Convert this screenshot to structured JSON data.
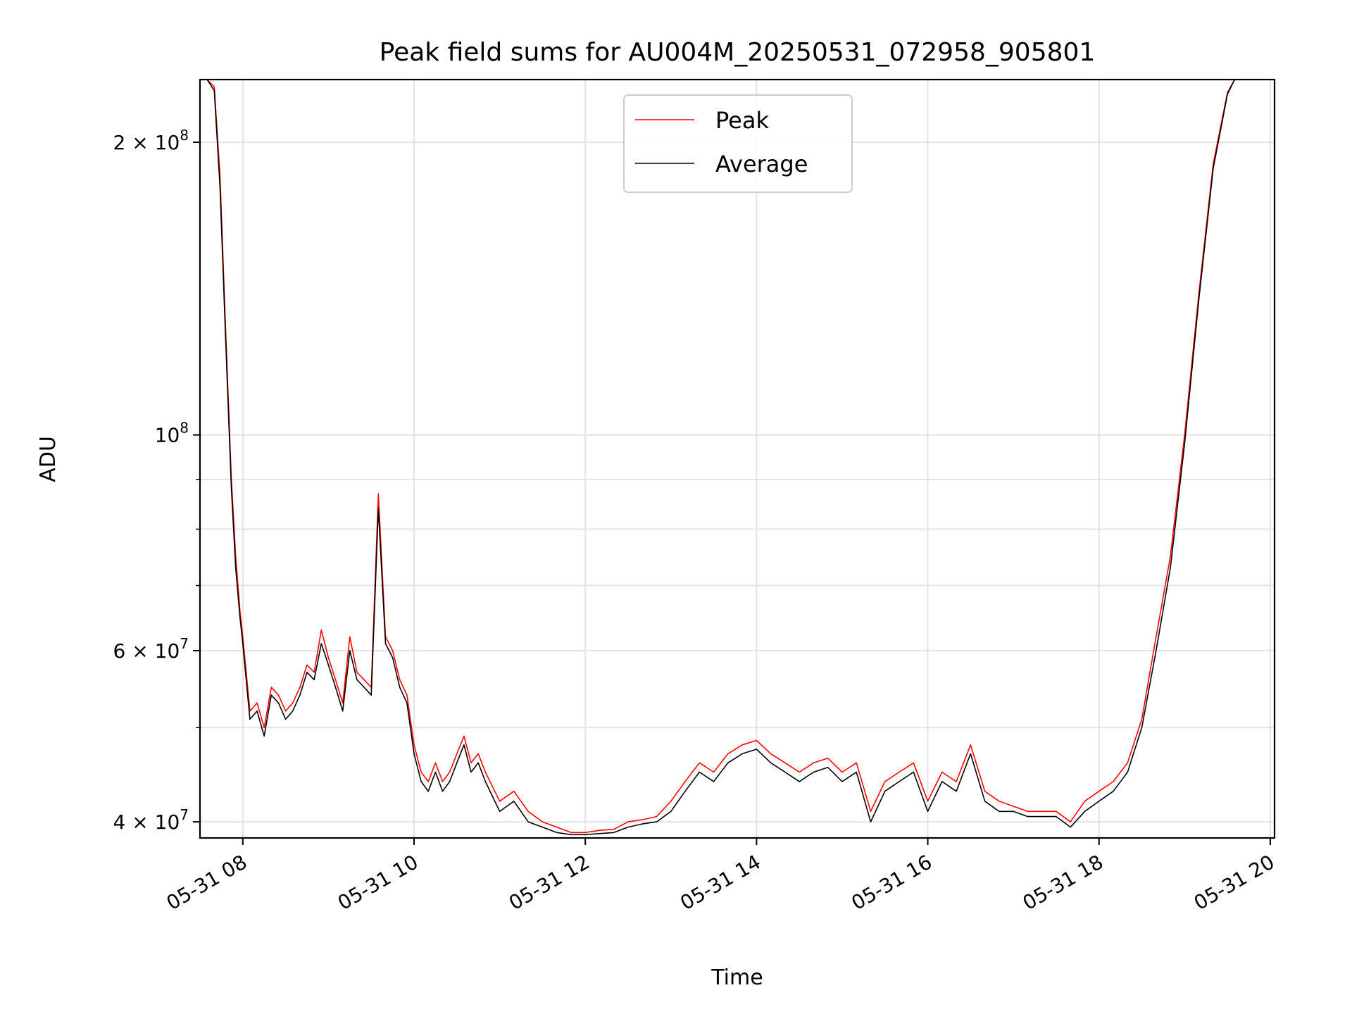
{
  "chart_data": {
    "type": "line",
    "title": "Peak field sums for AU004M_20250531_072958_905801",
    "xlabel": "Time",
    "ylabel": "ADU",
    "yscale": "log",
    "ylim": [
      38500000,
      232000000
    ],
    "xlim": [
      "2025-05-31 07:30",
      "2025-05-31 20:03"
    ],
    "grid": true,
    "legend_position": "upper center",
    "x_tick_labels": [
      "05-31 08",
      "05-31 10",
      "05-31 12",
      "05-31 14",
      "05-31 16",
      "05-31 18",
      "05-31 20"
    ],
    "x_ticks": [
      "2025-05-31 08:00",
      "2025-05-31 10:00",
      "2025-05-31 12:00",
      "2025-05-31 14:00",
      "2025-05-31 16:00",
      "2025-05-31 18:00",
      "2025-05-31 20:00"
    ],
    "y_tick_labels": [
      {
        "value": 40000000,
        "base": "4 × 10",
        "exp": "7"
      },
      {
        "value": 60000000,
        "base": "6 × 10",
        "exp": "7"
      },
      {
        "value": 100000000,
        "base": "10",
        "exp": "8"
      },
      {
        "value": 200000000,
        "base": "2 × 10",
        "exp": "8"
      }
    ],
    "y_minor_ticks": [
      50000000,
      70000000,
      80000000,
      90000000
    ],
    "series": [
      {
        "name": "Peak",
        "color": "#ff0000",
        "x": [
          "07:30",
          "07:35",
          "07:40",
          "07:44",
          "07:48",
          "07:52",
          "07:55",
          "07:58",
          "08:00",
          "08:05",
          "08:10",
          "08:15",
          "08:20",
          "08:25",
          "08:30",
          "08:35",
          "08:40",
          "08:45",
          "08:50",
          "08:55",
          "09:00",
          "09:05",
          "09:10",
          "09:15",
          "09:20",
          "09:25",
          "09:30",
          "09:35",
          "09:40",
          "09:45",
          "09:50",
          "09:55",
          "10:00",
          "10:05",
          "10:10",
          "10:15",
          "10:20",
          "10:25",
          "10:30",
          "10:35",
          "10:40",
          "10:45",
          "10:50",
          "11:00",
          "11:10",
          "11:20",
          "11:30",
          "11:40",
          "11:50",
          "12:00",
          "12:10",
          "12:20",
          "12:30",
          "12:40",
          "12:50",
          "13:00",
          "13:10",
          "13:20",
          "13:30",
          "13:40",
          "13:50",
          "14:00",
          "14:10",
          "14:20",
          "14:30",
          "14:40",
          "14:50",
          "15:00",
          "15:10",
          "15:20",
          "15:30",
          "15:40",
          "15:50",
          "16:00",
          "16:10",
          "16:20",
          "16:30",
          "16:40",
          "16:50",
          "17:00",
          "17:10",
          "17:20",
          "17:30",
          "17:40",
          "17:50",
          "18:00",
          "18:10",
          "18:20",
          "18:30",
          "18:40",
          "18:50",
          "19:00",
          "19:10",
          "19:20",
          "19:30",
          "19:35",
          "19:40",
          "19:45",
          "19:50",
          "19:55",
          "20:00",
          "20:03"
        ],
        "y": [
          232000000,
          232000000,
          228000000,
          185000000,
          128000000,
          90000000,
          75000000,
          66000000,
          62000000,
          52000000,
          53000000,
          50000000,
          55000000,
          54000000,
          52000000,
          53000000,
          55000000,
          58000000,
          57000000,
          63000000,
          59000000,
          56000000,
          53000000,
          62000000,
          57000000,
          56000000,
          55000000,
          87000000,
          62000000,
          60000000,
          56000000,
          54000000,
          48000000,
          45000000,
          44000000,
          46000000,
          44000000,
          45000000,
          47000000,
          49000000,
          46000000,
          47000000,
          45000000,
          42000000,
          43000000,
          41000000,
          40000000,
          39500000,
          39000000,
          39000000,
          39200000,
          39300000,
          40000000,
          40200000,
          40500000,
          42000000,
          44000000,
          46000000,
          45000000,
          47000000,
          48000000,
          48500000,
          47000000,
          46000000,
          45000000,
          46000000,
          46500000,
          45000000,
          46000000,
          41000000,
          44000000,
          45000000,
          46000000,
          42000000,
          45000000,
          44000000,
          48000000,
          43000000,
          42000000,
          41500000,
          41000000,
          41000000,
          41000000,
          40000000,
          42000000,
          43000000,
          44000000,
          46000000,
          51000000,
          62000000,
          75000000,
          100000000,
          140000000,
          190000000,
          225000000,
          232000000,
          232000000,
          232000000,
          232000000,
          232000000,
          232000000,
          232000000
        ]
      },
      {
        "name": "Average",
        "color": "#000000",
        "x": [
          "07:30",
          "07:35",
          "07:40",
          "07:44",
          "07:48",
          "07:52",
          "07:55",
          "07:58",
          "08:00",
          "08:05",
          "08:10",
          "08:15",
          "08:20",
          "08:25",
          "08:30",
          "08:35",
          "08:40",
          "08:45",
          "08:50",
          "08:55",
          "09:00",
          "09:05",
          "09:10",
          "09:15",
          "09:20",
          "09:25",
          "09:30",
          "09:35",
          "09:40",
          "09:45",
          "09:50",
          "09:55",
          "10:00",
          "10:05",
          "10:10",
          "10:15",
          "10:20",
          "10:25",
          "10:30",
          "10:35",
          "10:40",
          "10:45",
          "10:50",
          "11:00",
          "11:10",
          "11:20",
          "11:30",
          "11:40",
          "11:50",
          "12:00",
          "12:10",
          "12:20",
          "12:30",
          "12:40",
          "12:50",
          "13:00",
          "13:10",
          "13:20",
          "13:30",
          "13:40",
          "13:50",
          "14:00",
          "14:10",
          "14:20",
          "14:30",
          "14:40",
          "14:50",
          "15:00",
          "15:10",
          "15:20",
          "15:30",
          "15:40",
          "15:50",
          "16:00",
          "16:10",
          "16:20",
          "16:30",
          "16:40",
          "16:50",
          "17:00",
          "17:10",
          "17:20",
          "17:30",
          "17:40",
          "17:50",
          "18:00",
          "18:10",
          "18:20",
          "18:30",
          "18:40",
          "18:50",
          "19:00",
          "19:10",
          "19:20",
          "19:30",
          "19:35",
          "19:40",
          "19:45",
          "19:50",
          "19:55",
          "20:00",
          "20:03"
        ],
        "y": [
          232000000,
          232000000,
          226000000,
          180000000,
          125000000,
          88000000,
          73000000,
          65000000,
          61000000,
          51000000,
          52000000,
          49000000,
          54000000,
          53000000,
          51000000,
          52000000,
          54000000,
          57000000,
          56000000,
          61000000,
          58000000,
          55000000,
          52000000,
          60000000,
          56000000,
          55000000,
          54000000,
          84000000,
          61000000,
          59000000,
          55000000,
          53000000,
          47000000,
          44000000,
          43000000,
          45000000,
          43000000,
          44000000,
          46000000,
          48000000,
          45000000,
          46000000,
          44000000,
          41000000,
          42000000,
          40000000,
          39500000,
          39000000,
          38800000,
          38800000,
          38900000,
          39000000,
          39500000,
          39800000,
          40000000,
          41000000,
          43000000,
          45000000,
          44000000,
          46000000,
          47000000,
          47500000,
          46000000,
          45000000,
          44000000,
          45000000,
          45500000,
          44000000,
          45000000,
          40000000,
          43000000,
          44000000,
          45000000,
          41000000,
          44000000,
          43000000,
          47000000,
          42000000,
          41000000,
          41000000,
          40500000,
          40500000,
          40500000,
          39500000,
          41000000,
          42000000,
          43000000,
          45000000,
          50000000,
          60000000,
          73000000,
          98000000,
          138000000,
          188000000,
          224000000,
          232000000,
          232000000,
          232000000,
          232000000,
          232000000,
          232000000,
          232000000
        ]
      }
    ]
  }
}
